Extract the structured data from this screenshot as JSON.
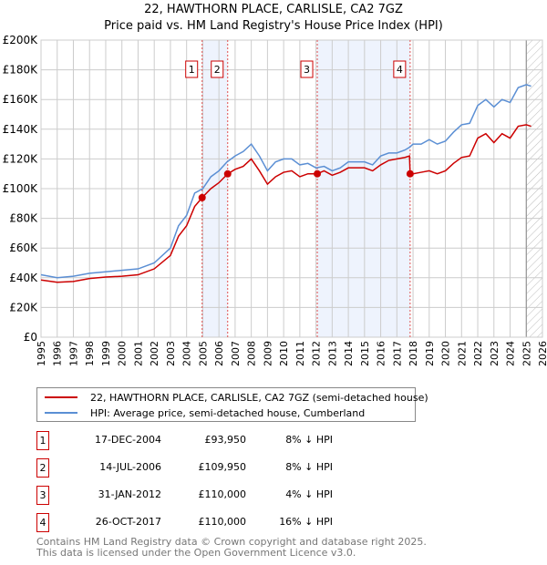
{
  "chart_data": {
    "type": "line",
    "title": "22, HAWTHORN PLACE, CARLISLE, CA2 7GZ",
    "subtitle": "Price paid vs. HM Land Registry's House Price Index (HPI)",
    "xlim": [
      1995,
      2026
    ],
    "ylim": [
      0,
      200000
    ],
    "x_ticks": [
      "1995",
      "1996",
      "1997",
      "1998",
      "1999",
      "2000",
      "2001",
      "2002",
      "2003",
      "2004",
      "2005",
      "2006",
      "2007",
      "2008",
      "2009",
      "2010",
      "2011",
      "2012",
      "2013",
      "2014",
      "2015",
      "2016",
      "2017",
      "2018",
      "2019",
      "2020",
      "2021",
      "2022",
      "2023",
      "2024",
      "2025",
      "2026"
    ],
    "y_ticks": [
      {
        "v": 0,
        "l": "£0"
      },
      {
        "v": 20000,
        "l": "£20K"
      },
      {
        "v": 40000,
        "l": "£40K"
      },
      {
        "v": 60000,
        "l": "£60K"
      },
      {
        "v": 80000,
        "l": "£80K"
      },
      {
        "v": 100000,
        "l": "£100K"
      },
      {
        "v": 120000,
        "l": "£120K"
      },
      {
        "v": 140000,
        "l": "£140K"
      },
      {
        "v": 160000,
        "l": "£160K"
      },
      {
        "v": 180000,
        "l": "£180K"
      },
      {
        "v": 200000,
        "l": "£200K"
      }
    ],
    "grid": true,
    "forecast_from": 2025.0,
    "series": [
      {
        "name": "22, HAWTHORN PLACE, CARLISLE, CA2 7GZ (semi-detached house)",
        "color": "#cc0000",
        "x": [
          1995,
          1996,
          1997,
          1998,
          1999,
          2000,
          2001,
          2002,
          2003,
          2003.5,
          2004,
          2004.5,
          2004.96,
          2005.5,
          2006,
          2006.54,
          2007,
          2007.5,
          2008,
          2008.5,
          2009,
          2009.5,
          2010,
          2010.5,
          2011,
          2011.5,
          2012.08,
          2012.5,
          2013,
          2013.5,
          2014,
          2015,
          2015.5,
          2016,
          2016.5,
          2017,
          2017.5,
          2017.78,
          2017.82,
          2018,
          2018.5,
          2019,
          2019.5,
          2020,
          2020.5,
          2021,
          2021.5,
          2022,
          2022.5,
          2023,
          2023.5,
          2024,
          2024.5,
          2025,
          2025.3
        ],
        "y": [
          38500,
          37000,
          37500,
          39500,
          40500,
          41000,
          42000,
          46000,
          55000,
          68000,
          75000,
          88000,
          93950,
          100000,
          104000,
          109950,
          113000,
          115000,
          120000,
          112000,
          103000,
          108000,
          111000,
          112000,
          108000,
          110000,
          110000,
          112000,
          109000,
          111000,
          114000,
          114000,
          112000,
          116000,
          119000,
          120000,
          121000,
          122000,
          110000,
          110000,
          111000,
          112000,
          110000,
          112000,
          117000,
          121000,
          122000,
          134000,
          137000,
          131000,
          137000,
          134000,
          142000,
          143000,
          142000
        ]
      },
      {
        "name": "HPI: Average price, semi-detached house, Cumberland",
        "color": "#5b8fd4",
        "x": [
          1995,
          1996,
          1997,
          1998,
          1999,
          2000,
          2001,
          2002,
          2003,
          2003.5,
          2004,
          2004.5,
          2005,
          2005.5,
          2006,
          2006.5,
          2007,
          2007.5,
          2008,
          2008.5,
          2009,
          2009.5,
          2010,
          2010.5,
          2011,
          2011.5,
          2012,
          2012.5,
          2013,
          2013.5,
          2014,
          2015,
          2015.5,
          2016,
          2016.5,
          2017,
          2017.5,
          2017.8,
          2018,
          2018.5,
          2019,
          2019.5,
          2020,
          2020.5,
          2021,
          2021.5,
          2022,
          2022.5,
          2023,
          2023.5,
          2024,
          2024.5,
          2025,
          2025.3
        ],
        "y": [
          42000,
          40000,
          41000,
          43000,
          44000,
          45000,
          46000,
          50000,
          60000,
          75000,
          82000,
          97000,
          100000,
          108000,
          112000,
          118000,
          122000,
          125000,
          130000,
          122000,
          112000,
          118000,
          120000,
          120000,
          116000,
          117000,
          114000,
          115000,
          112000,
          114000,
          118000,
          118000,
          116000,
          122000,
          124000,
          124000,
          126000,
          128000,
          130000,
          130000,
          133000,
          130000,
          132000,
          138000,
          143000,
          144000,
          156000,
          160000,
          155000,
          160000,
          158000,
          168000,
          170000,
          169000
        ]
      }
    ],
    "sales": [
      {
        "n": "1",
        "x": 2004.96,
        "date": "17-DEC-2004",
        "price": 93950,
        "price_label": "£93,950",
        "hpi": "8% ↓ HPI"
      },
      {
        "n": "2",
        "x": 2006.54,
        "date": "14-JUL-2006",
        "price": 109950,
        "price_label": "£109,950",
        "hpi": "8% ↓ HPI"
      },
      {
        "n": "3",
        "x": 2012.08,
        "date": "31-JAN-2012",
        "price": 110000,
        "price_label": "£110,000",
        "hpi": "4% ↓ HPI"
      },
      {
        "n": "4",
        "x": 2017.82,
        "date": "26-OCT-2017",
        "price": 110000,
        "price_label": "£110,000",
        "hpi": "16% ↓ HPI"
      }
    ]
  },
  "legend": {
    "red": "22, HAWTHORN PLACE, CARLISLE, CA2 7GZ (semi-detached house)",
    "blue": "HPI: Average price, semi-detached house, Cumberland"
  },
  "footer": {
    "line1": "Contains HM Land Registry data © Crown copyright and database right 2025.",
    "line2": "This data is licensed under the Open Government Licence v3.0."
  }
}
